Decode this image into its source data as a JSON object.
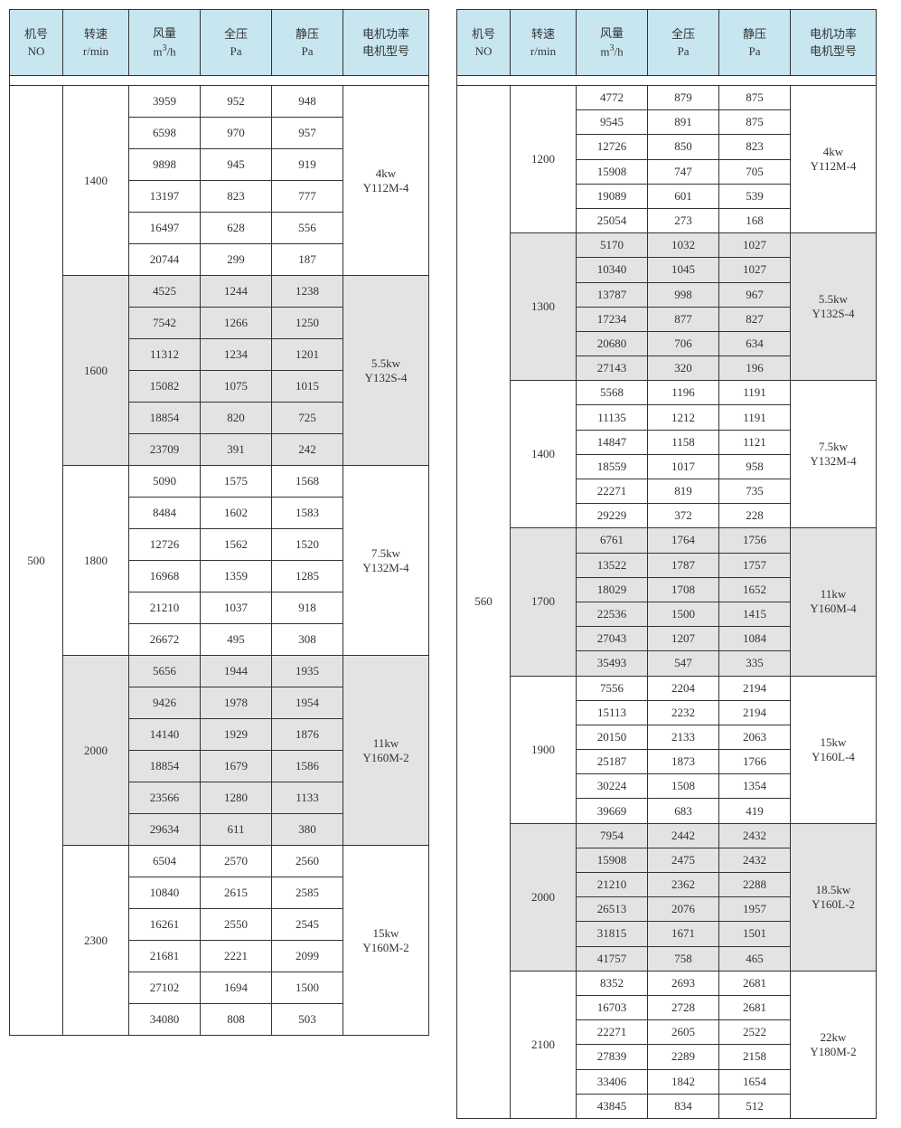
{
  "colors": {
    "header_bg": "#c8e6f0",
    "shaded_bg": "#e3e3e3",
    "border": "#333333",
    "text": "#333333",
    "page_bg": "#ffffff"
  },
  "typography": {
    "font_family": "SimSun",
    "font_size_pt": 10,
    "header_font_size_pt": 10
  },
  "headers": {
    "no": [
      "机号",
      "NO"
    ],
    "speed": [
      "转速",
      "r/min"
    ],
    "flow": [
      "风量",
      "m³/h"
    ],
    "tp": [
      "全压",
      "Pa"
    ],
    "sp": [
      "静压",
      "Pa"
    ],
    "motor": [
      "电机功率",
      "电机型号"
    ]
  },
  "left_table": {
    "machine_no": "500",
    "groups": [
      {
        "speed": "1400",
        "motor": [
          "4kw",
          "Y112M-4"
        ],
        "shaded": false,
        "rows": [
          [
            "3959",
            "952",
            "948"
          ],
          [
            "6598",
            "970",
            "957"
          ],
          [
            "9898",
            "945",
            "919"
          ],
          [
            "13197",
            "823",
            "777"
          ],
          [
            "16497",
            "628",
            "556"
          ],
          [
            "20744",
            "299",
            "187"
          ]
        ]
      },
      {
        "speed": "1600",
        "motor": [
          "5.5kw",
          "Y132S-4"
        ],
        "shaded": true,
        "rows": [
          [
            "4525",
            "1244",
            "1238"
          ],
          [
            "7542",
            "1266",
            "1250"
          ],
          [
            "11312",
            "1234",
            "1201"
          ],
          [
            "15082",
            "1075",
            "1015"
          ],
          [
            "18854",
            "820",
            "725"
          ],
          [
            "23709",
            "391",
            "242"
          ]
        ]
      },
      {
        "speed": "1800",
        "motor": [
          "7.5kw",
          "Y132M-4"
        ],
        "shaded": false,
        "rows": [
          [
            "5090",
            "1575",
            "1568"
          ],
          [
            "8484",
            "1602",
            "1583"
          ],
          [
            "12726",
            "1562",
            "1520"
          ],
          [
            "16968",
            "1359",
            "1285"
          ],
          [
            "21210",
            "1037",
            "918"
          ],
          [
            "26672",
            "495",
            "308"
          ]
        ]
      },
      {
        "speed": "2000",
        "motor": [
          "11kw",
          "Y160M-2"
        ],
        "shaded": true,
        "rows": [
          [
            "5656",
            "1944",
            "1935"
          ],
          [
            "9426",
            "1978",
            "1954"
          ],
          [
            "14140",
            "1929",
            "1876"
          ],
          [
            "18854",
            "1679",
            "1586"
          ],
          [
            "23566",
            "1280",
            "1133"
          ],
          [
            "29634",
            "611",
            "380"
          ]
        ]
      },
      {
        "speed": "2300",
        "motor": [
          "15kw",
          "Y160M-2"
        ],
        "shaded": false,
        "rows": [
          [
            "6504",
            "2570",
            "2560"
          ],
          [
            "10840",
            "2615",
            "2585"
          ],
          [
            "16261",
            "2550",
            "2545"
          ],
          [
            "21681",
            "2221",
            "2099"
          ],
          [
            "27102",
            "1694",
            "1500"
          ],
          [
            "34080",
            "808",
            "503"
          ]
        ]
      }
    ]
  },
  "right_table": {
    "machine_no": "560",
    "groups": [
      {
        "speed": "1200",
        "motor": [
          "4kw",
          "Y112M-4"
        ],
        "shaded": false,
        "rows": [
          [
            "4772",
            "879",
            "875"
          ],
          [
            "9545",
            "891",
            "875"
          ],
          [
            "12726",
            "850",
            "823"
          ],
          [
            "15908",
            "747",
            "705"
          ],
          [
            "19089",
            "601",
            "539"
          ],
          [
            "25054",
            "273",
            "168"
          ]
        ]
      },
      {
        "speed": "1300",
        "motor": [
          "5.5kw",
          "Y132S-4"
        ],
        "shaded": true,
        "rows": [
          [
            "5170",
            "1032",
            "1027"
          ],
          [
            "10340",
            "1045",
            "1027"
          ],
          [
            "13787",
            "998",
            "967"
          ],
          [
            "17234",
            "877",
            "827"
          ],
          [
            "20680",
            "706",
            "634"
          ],
          [
            "27143",
            "320",
            "196"
          ]
        ]
      },
      {
        "speed": "1400",
        "motor": [
          "7.5kw",
          "Y132M-4"
        ],
        "shaded": false,
        "rows": [
          [
            "5568",
            "1196",
            "1191"
          ],
          [
            "11135",
            "1212",
            "1191"
          ],
          [
            "14847",
            "1158",
            "1121"
          ],
          [
            "18559",
            "1017",
            "958"
          ],
          [
            "22271",
            "819",
            "735"
          ],
          [
            "29229",
            "372",
            "228"
          ]
        ]
      },
      {
        "speed": "1700",
        "motor": [
          "11kw",
          "Y160M-4"
        ],
        "shaded": true,
        "rows": [
          [
            "6761",
            "1764",
            "1756"
          ],
          [
            "13522",
            "1787",
            "1757"
          ],
          [
            "18029",
            "1708",
            "1652"
          ],
          [
            "22536",
            "1500",
            "1415"
          ],
          [
            "27043",
            "1207",
            "1084"
          ],
          [
            "35493",
            "547",
            "335"
          ]
        ]
      },
      {
        "speed": "1900",
        "motor": [
          "15kw",
          "Y160L-4"
        ],
        "shaded": false,
        "rows": [
          [
            "7556",
            "2204",
            "2194"
          ],
          [
            "15113",
            "2232",
            "2194"
          ],
          [
            "20150",
            "2133",
            "2063"
          ],
          [
            "25187",
            "1873",
            "1766"
          ],
          [
            "30224",
            "1508",
            "1354"
          ],
          [
            "39669",
            "683",
            "419"
          ]
        ]
      },
      {
        "speed": "2000",
        "motor": [
          "18.5kw",
          "Y160L-2"
        ],
        "shaded": true,
        "rows": [
          [
            "7954",
            "2442",
            "2432"
          ],
          [
            "15908",
            "2475",
            "2432"
          ],
          [
            "21210",
            "2362",
            "2288"
          ],
          [
            "26513",
            "2076",
            "1957"
          ],
          [
            "31815",
            "1671",
            "1501"
          ],
          [
            "41757",
            "758",
            "465"
          ]
        ]
      },
      {
        "speed": "2100",
        "motor": [
          "22kw",
          "Y180M-2"
        ],
        "shaded": false,
        "rows": [
          [
            "8352",
            "2693",
            "2681"
          ],
          [
            "16703",
            "2728",
            "2681"
          ],
          [
            "22271",
            "2605",
            "2522"
          ],
          [
            "27839",
            "2289",
            "2158"
          ],
          [
            "33406",
            "1842",
            "1654"
          ],
          [
            "43845",
            "834",
            "512"
          ]
        ]
      }
    ]
  }
}
